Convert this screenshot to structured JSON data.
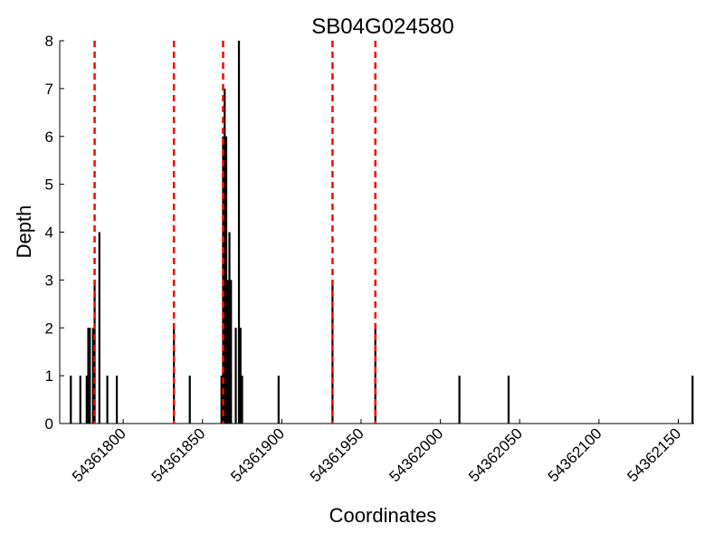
{
  "chart_data": {
    "type": "bar",
    "title": "SB04G024580",
    "xlabel": "Coordinates",
    "ylabel": "Depth",
    "xlim": [
      54361760,
      54362160
    ],
    "ylim": [
      0,
      8
    ],
    "x_ticks": [
      "54361800",
      "54361850",
      "54361900",
      "54361950",
      "54362000",
      "54362050",
      "54362100",
      "54362150"
    ],
    "y_ticks": [
      "0",
      "1",
      "2",
      "3",
      "4",
      "5",
      "6",
      "7",
      "8"
    ],
    "grid": false,
    "series": [
      {
        "values": [
          {
            "x": 54361767,
            "y": 1
          },
          {
            "x": 54361773,
            "y": 1
          },
          {
            "x": 54361777,
            "y": 1
          },
          {
            "x": 54361778,
            "y": 2
          },
          {
            "x": 54361779,
            "y": 2
          },
          {
            "x": 54361781,
            "y": 2
          },
          {
            "x": 54361782,
            "y": 3
          },
          {
            "x": 54361785,
            "y": 4
          },
          {
            "x": 54361790,
            "y": 1
          },
          {
            "x": 54361796,
            "y": 1
          },
          {
            "x": 54361832,
            "y": 2
          },
          {
            "x": 54361842,
            "y": 1
          },
          {
            "x": 54361862,
            "y": 1
          },
          {
            "x": 54361863,
            "y": 6
          },
          {
            "x": 54361864,
            "y": 7
          },
          {
            "x": 54361865,
            "y": 6
          },
          {
            "x": 54361866,
            "y": 3
          },
          {
            "x": 54361867,
            "y": 4
          },
          {
            "x": 54361868,
            "y": 3
          },
          {
            "x": 54361871,
            "y": 2
          },
          {
            "x": 54361873,
            "y": 8
          },
          {
            "x": 54361874,
            "y": 2
          },
          {
            "x": 54361875,
            "y": 1
          },
          {
            "x": 54361898,
            "y": 1
          },
          {
            "x": 54361932,
            "y": 3
          },
          {
            "x": 54361959,
            "y": 2
          },
          {
            "x": 54362012,
            "y": 1
          },
          {
            "x": 54362043,
            "y": 1
          },
          {
            "x": 54362159,
            "y": 1
          }
        ]
      }
    ],
    "reference_lines": [
      54361782,
      54361832,
      54361863,
      54361932,
      54361959
    ],
    "colors": {
      "bars": "#000000",
      "reference_lines": "#ff0000"
    }
  }
}
